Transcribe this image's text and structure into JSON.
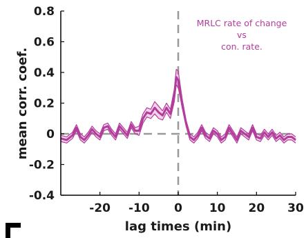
{
  "chart_data": {
    "type": "line",
    "xlabel": "lag times (min)",
    "ylabel": "mean corr. coef.",
    "xlim": [
      -30,
      30
    ],
    "ylim": [
      -0.4,
      0.8
    ],
    "xticks": [
      -20,
      -10,
      0,
      10,
      20,
      30
    ],
    "xtick_labels": [
      "-20",
      "-10",
      "0",
      "10",
      "20",
      "30"
    ],
    "yticks": [
      -0.4,
      -0.2,
      0,
      0.2,
      0.4,
      0.6,
      0.8
    ],
    "ytick_labels": [
      "-0.4",
      "-0.2",
      "0",
      "0.2",
      "0.4",
      "0.6",
      "0.8"
    ],
    "annotation": [
      "MRLC rate of change",
      "vs",
      "con. rate."
    ],
    "reference_lines": {
      "horizontal_y": 0,
      "vertical_x": 0,
      "style": "dashed",
      "color": "#999999"
    },
    "series": [
      {
        "color": "#b43c9c",
        "x": [
          -30,
          -28.5,
          -27,
          -26,
          -25,
          -24,
          -23,
          -22,
          -21,
          -20,
          -19,
          -18,
          -17,
          -16,
          -15,
          -14,
          -13,
          -12,
          -11,
          -10,
          -9,
          -8,
          -7,
          -6,
          -5,
          -4,
          -3,
          -2,
          -1,
          -0.5,
          0,
          0.5,
          1,
          2,
          3,
          4,
          5,
          6,
          7,
          8,
          9,
          10,
          11,
          12,
          13,
          14,
          15,
          16,
          17,
          18,
          19,
          20,
          21,
          22,
          23,
          24,
          25,
          26,
          27,
          28,
          29,
          30
        ],
        "mean": [
          -0.03,
          -0.04,
          -0.01,
          0.04,
          -0.02,
          -0.04,
          -0.01,
          0.03,
          0.0,
          -0.02,
          0.04,
          0.05,
          0.01,
          -0.02,
          0.05,
          0.02,
          -0.01,
          0.06,
          0.02,
          0.02,
          0.1,
          0.14,
          0.13,
          0.17,
          0.14,
          0.12,
          0.17,
          0.13,
          0.25,
          0.37,
          0.35,
          0.28,
          0.2,
          0.07,
          -0.02,
          -0.04,
          -0.01,
          0.04,
          -0.01,
          -0.03,
          0.02,
          0.0,
          -0.04,
          -0.02,
          0.04,
          0.0,
          -0.04,
          0.02,
          0.0,
          -0.02,
          0.04,
          -0.02,
          -0.03,
          0.01,
          -0.02,
          0.01,
          -0.03,
          -0.01,
          -0.04,
          -0.02,
          -0.02,
          -0.04
        ],
        "upper": [
          -0.01,
          -0.02,
          0.01,
          0.06,
          0.0,
          -0.02,
          0.01,
          0.05,
          0.02,
          0.0,
          0.06,
          0.07,
          0.03,
          0.0,
          0.07,
          0.04,
          0.01,
          0.08,
          0.04,
          0.05,
          0.13,
          0.17,
          0.16,
          0.21,
          0.18,
          0.15,
          0.2,
          0.16,
          0.29,
          0.42,
          0.41,
          0.32,
          0.23,
          0.09,
          0.0,
          -0.02,
          0.01,
          0.06,
          0.01,
          -0.01,
          0.04,
          0.02,
          -0.02,
          0.0,
          0.06,
          0.02,
          -0.02,
          0.04,
          0.02,
          0.0,
          0.06,
          0.0,
          -0.01,
          0.03,
          0.0,
          0.03,
          -0.01,
          0.01,
          -0.02,
          0.0,
          0.0,
          -0.02
        ],
        "lower": [
          -0.05,
          -0.06,
          -0.03,
          0.02,
          -0.04,
          -0.06,
          -0.03,
          0.01,
          -0.02,
          -0.04,
          0.02,
          0.03,
          -0.01,
          -0.04,
          0.03,
          0.0,
          -0.03,
          0.04,
          0.0,
          -0.01,
          0.07,
          0.11,
          0.1,
          0.13,
          0.1,
          0.09,
          0.14,
          0.1,
          0.21,
          0.32,
          0.3,
          0.24,
          0.17,
          0.05,
          -0.04,
          -0.06,
          -0.03,
          0.02,
          -0.03,
          -0.05,
          0.0,
          -0.02,
          -0.06,
          -0.04,
          0.02,
          -0.02,
          -0.06,
          0.0,
          -0.02,
          -0.04,
          0.02,
          -0.04,
          -0.05,
          -0.01,
          -0.04,
          -0.01,
          -0.05,
          -0.03,
          -0.06,
          -0.04,
          -0.04,
          -0.06
        ]
      }
    ],
    "grid": false,
    "legend": false
  }
}
